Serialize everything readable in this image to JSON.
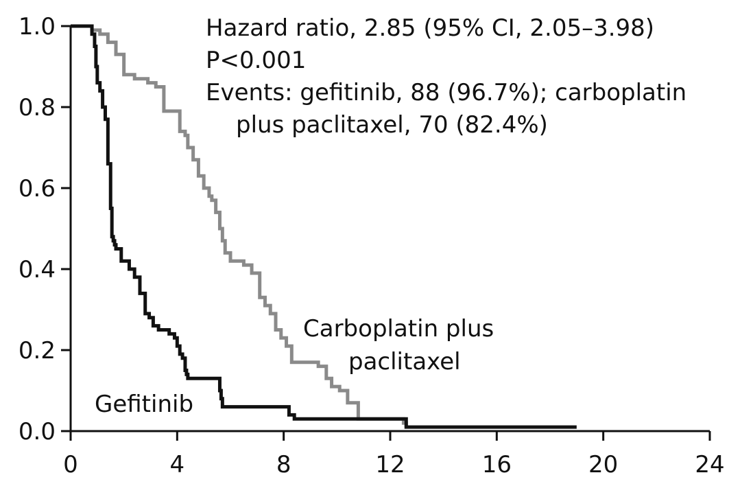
{
  "chart_data": {
    "type": "line",
    "step": true,
    "xlim": [
      0,
      24
    ],
    "ylim": [
      0,
      1
    ],
    "xticks": [
      0,
      4,
      8,
      12,
      16,
      20,
      24
    ],
    "yticks": [
      0.0,
      0.2,
      0.4,
      0.6,
      0.8,
      1.0
    ],
    "xtick_labels": [
      "0",
      "4",
      "8",
      "12",
      "16",
      "20",
      "24"
    ],
    "ytick_labels": [
      "0.0",
      "0.2",
      "0.4",
      "0.6",
      "0.8",
      "1.0"
    ],
    "grid": false,
    "annotations": {
      "hr_line": "Hazard ratio, 2.85 (95% CI, 2.05–3.98)",
      "p_line": "P<0.001",
      "events_line1": "Events: gefitinib, 88 (96.7%); carboplatin",
      "events_line2": "plus paclitaxel, 70 (82.4%)"
    },
    "series": [
      {
        "name": "Gefitinib",
        "color": "#111111",
        "x": [
          0,
          0.8,
          0.9,
          0.95,
          1.0,
          1.1,
          1.2,
          1.3,
          1.4,
          1.5,
          1.55,
          1.6,
          1.65,
          1.7,
          1.9,
          2.2,
          2.4,
          2.6,
          2.8,
          2.95,
          3.1,
          3.3,
          3.7,
          3.9,
          4.0,
          4.1,
          4.2,
          4.3,
          4.35,
          4.4,
          5.6,
          5.65,
          5.7,
          5.8,
          8.2,
          8.4,
          12.6,
          19.0
        ],
        "y": [
          1.0,
          0.98,
          0.95,
          0.9,
          0.86,
          0.84,
          0.8,
          0.77,
          0.66,
          0.55,
          0.48,
          0.47,
          0.46,
          0.45,
          0.42,
          0.4,
          0.38,
          0.34,
          0.29,
          0.28,
          0.26,
          0.25,
          0.24,
          0.23,
          0.21,
          0.19,
          0.18,
          0.15,
          0.14,
          0.13,
          0.1,
          0.08,
          0.06,
          0.06,
          0.04,
          0.03,
          0.01,
          0.01
        ]
      },
      {
        "name": "Carboplatin plus paclitaxel",
        "color": "#8a8a8a",
        "x": [
          0,
          0.8,
          1.1,
          1.4,
          1.7,
          2.0,
          2.4,
          2.9,
          3.2,
          3.5,
          4.1,
          4.3,
          4.4,
          4.6,
          4.8,
          5.0,
          5.2,
          5.3,
          5.45,
          5.6,
          5.7,
          5.8,
          6.0,
          6.5,
          6.8,
          7.1,
          7.3,
          7.5,
          7.7,
          7.9,
          8.1,
          8.3,
          9.3,
          9.6,
          9.8,
          10.1,
          10.4,
          10.8,
          12.5,
          12.6
        ],
        "y": [
          1.0,
          0.99,
          0.98,
          0.96,
          0.93,
          0.88,
          0.87,
          0.86,
          0.85,
          0.79,
          0.74,
          0.73,
          0.7,
          0.67,
          0.63,
          0.6,
          0.58,
          0.57,
          0.54,
          0.5,
          0.47,
          0.44,
          0.42,
          0.41,
          0.39,
          0.33,
          0.31,
          0.29,
          0.25,
          0.23,
          0.21,
          0.17,
          0.16,
          0.13,
          0.11,
          0.1,
          0.07,
          0.03,
          0.02,
          0.01
        ]
      }
    ],
    "series_labels": {
      "gefitinib": "Gefitinib",
      "carbo_line1": "Carboplatin plus",
      "carbo_line2": "paclitaxel"
    }
  }
}
